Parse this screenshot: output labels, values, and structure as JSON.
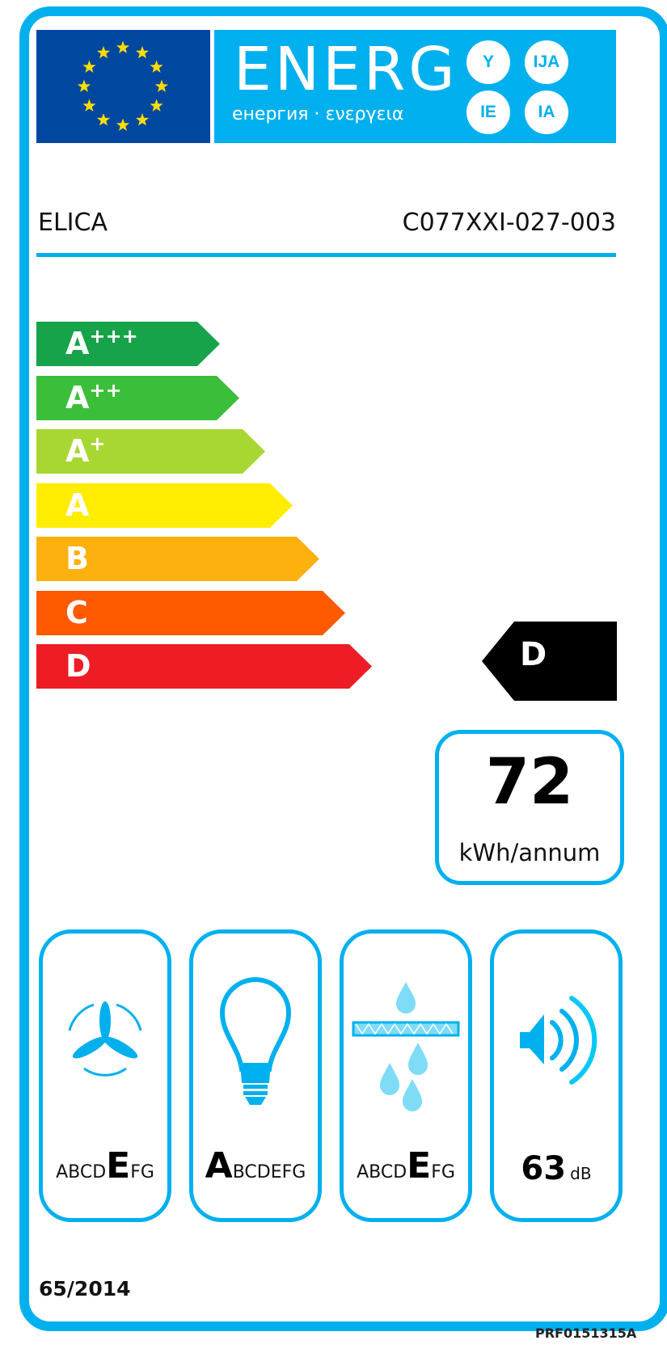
{
  "header": {
    "energy_word": "ENERG",
    "energy_subtitle": "енергия · ενεργεια",
    "suffixes": [
      "Y",
      "IJA",
      "IE",
      "IA"
    ],
    "supplier": "ELICA",
    "model": "C077XXI-027-003"
  },
  "scale": {
    "classes": [
      {
        "letter": "A",
        "plus": "+++",
        "color": "#17a34a"
      },
      {
        "letter": "A",
        "plus": "++",
        "color": "#3bbf3b"
      },
      {
        "letter": "A",
        "plus": "+",
        "color": "#a8d733"
      },
      {
        "letter": "A",
        "plus": "",
        "color": "#ffed00"
      },
      {
        "letter": "B",
        "plus": "",
        "color": "#fcb10f"
      },
      {
        "letter": "C",
        "plus": "",
        "color": "#ff5a00"
      },
      {
        "letter": "D",
        "plus": "",
        "color": "#ee1c25"
      }
    ],
    "rating": "D"
  },
  "consumption": {
    "value": "72",
    "unit": "kWh/annum"
  },
  "icons": [
    {
      "icon": "fan-icon",
      "pre": "ABCD",
      "bold": "E",
      "post": "FG"
    },
    {
      "icon": "light-bulb-icon",
      "pre": "",
      "bold": "A",
      "post": "BCDEFG"
    },
    {
      "icon": "grease-filter-icon",
      "pre": "ABCD",
      "bold": "E",
      "post": "FG"
    },
    {
      "icon": "speaker-icon",
      "noise_value": "63",
      "noise_unit": "dB"
    }
  ],
  "footer": {
    "regulation": "65/2014",
    "label_code": "PRF0151315A"
  },
  "colors": {
    "border": "#00b0ee",
    "eu_blue": "#0047a0",
    "star": "#ffdd00"
  }
}
